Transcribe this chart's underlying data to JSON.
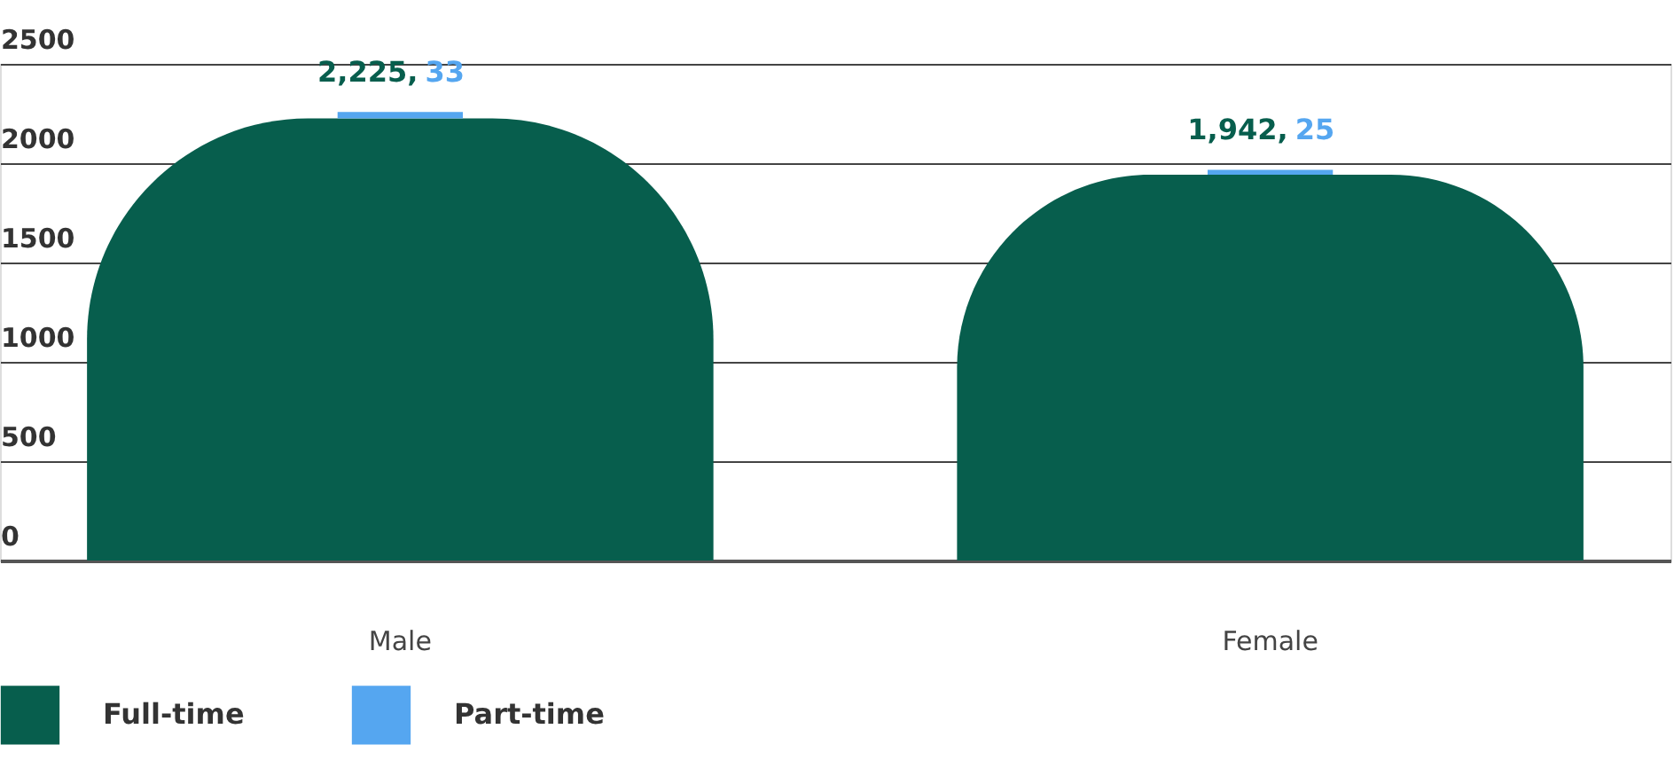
{
  "chart_data": {
    "type": "bar",
    "stacked": true,
    "categories": [
      "Male",
      "Female"
    ],
    "series": [
      {
        "name": "Full-time",
        "color": "#075e4d",
        "values": [
          2225,
          1942
        ],
        "value_labels": [
          "2,225,",
          "1,942,"
        ]
      },
      {
        "name": "Part-time",
        "color": "#55a6f0",
        "values": [
          33,
          25
        ],
        "value_labels": [
          "33",
          "25"
        ]
      }
    ],
    "ylim": [
      0,
      2500
    ],
    "yticks": [
      0,
      500,
      1000,
      1500,
      2000,
      2500
    ],
    "grid": "y",
    "legend": "bottom left"
  }
}
